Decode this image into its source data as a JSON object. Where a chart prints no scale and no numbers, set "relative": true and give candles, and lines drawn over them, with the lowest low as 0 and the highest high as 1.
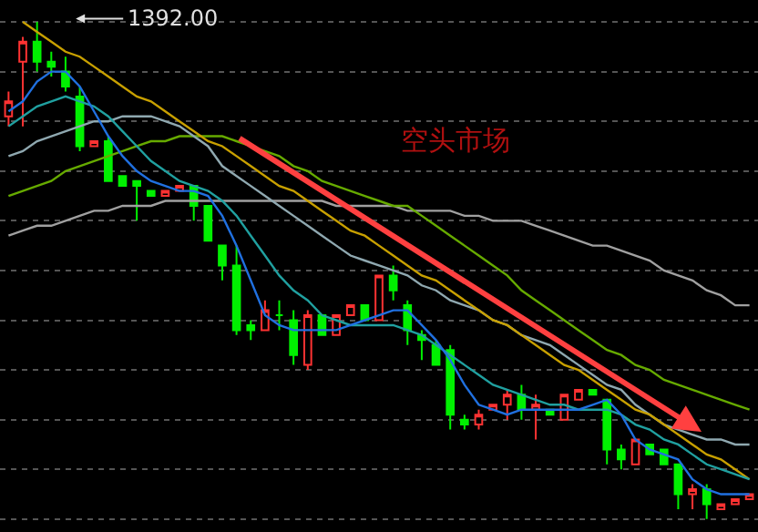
{
  "chart_data": {
    "type": "candlestick",
    "relative": true,
    "grid": "y",
    "categories": [
      null,
      null,
      null,
      null,
      null,
      null,
      null,
      null,
      null,
      null,
      null,
      null,
      null,
      null,
      null,
      null,
      null,
      null,
      null,
      null,
      null,
      null,
      null,
      null,
      null,
      null,
      null,
      null,
      null,
      null,
      null,
      null,
      null,
      null,
      null,
      null,
      null,
      null,
      null,
      null,
      null,
      null,
      null,
      null,
      null,
      null,
      null,
      null,
      null,
      null,
      null,
      null,
      null
    ],
    "colors": [
      "#ff3232",
      "#ff3232",
      "#00f000",
      "#00f000",
      "#00f000",
      "#00f000",
      "#ff3232",
      "#00f000",
      "#00f000",
      "#00f000",
      "#00f000",
      "#ff3232",
      "#ff3232",
      "#00f000",
      "#00f000",
      "#00f000",
      "#00f000",
      "#00f000",
      "#ff3232",
      "#00f000",
      "#00f000",
      "#ff3232",
      "#00f000",
      "#ff3232",
      "#ff3232",
      "#00f000",
      "#ff3232",
      "#00f000",
      "#00f000",
      "#00f000",
      "#00f000",
      "#00f000",
      "#00f000",
      "#ff3232",
      "#ff3232",
      "#ff3232",
      "#00f000",
      "#ff3232",
      "#00f000",
      "#ff3232",
      "#ff3232",
      "#00f000",
      "#00f000",
      "#00f000",
      "#ff3232",
      "#00f000",
      "#00f000",
      "#00f000",
      "#ff3232",
      "#00f000",
      "#ff3232",
      "#ff3232",
      "#ff3232"
    ],
    "ohlc": [
      [
        0.81,
        0.86,
        0.79,
        0.84
      ],
      [
        0.92,
        0.97,
        0.79,
        0.96
      ],
      [
        0.96,
        1.0,
        0.9,
        0.92
      ],
      [
        0.92,
        0.94,
        0.89,
        0.91
      ],
      [
        0.9,
        0.93,
        0.86,
        0.87
      ],
      [
        0.85,
        0.87,
        0.74,
        0.75
      ],
      [
        0.75,
        0.76,
        0.75,
        0.76
      ],
      [
        0.76,
        0.77,
        0.68,
        0.68
      ],
      [
        0.69,
        0.69,
        0.67,
        0.67
      ],
      [
        0.68,
        0.68,
        0.6,
        0.67
      ],
      [
        0.66,
        0.66,
        0.65,
        0.65
      ],
      [
        0.65,
        0.66,
        0.65,
        0.66
      ],
      [
        0.66,
        0.67,
        0.66,
        0.67
      ],
      [
        0.67,
        0.67,
        0.6,
        0.63
      ],
      [
        0.63,
        0.63,
        0.56,
        0.56
      ],
      [
        0.55,
        0.55,
        0.48,
        0.51
      ],
      [
        0.51,
        0.55,
        0.37,
        0.38
      ],
      [
        0.39,
        0.4,
        0.36,
        0.38
      ],
      [
        0.38,
        0.44,
        0.38,
        0.42
      ],
      [
        0.41,
        0.44,
        0.38,
        0.41
      ],
      [
        0.4,
        0.42,
        0.31,
        0.33
      ],
      [
        0.31,
        0.42,
        0.3,
        0.41
      ],
      [
        0.41,
        0.41,
        0.37,
        0.37
      ],
      [
        0.37,
        0.41,
        0.37,
        0.41
      ],
      [
        0.41,
        0.43,
        0.41,
        0.43
      ],
      [
        0.43,
        0.43,
        0.4,
        0.4
      ],
      [
        0.4,
        0.49,
        0.4,
        0.49
      ],
      [
        0.49,
        0.51,
        0.44,
        0.46
      ],
      [
        0.43,
        0.44,
        0.35,
        0.38
      ],
      [
        0.37,
        0.38,
        0.32,
        0.36
      ],
      [
        0.35,
        0.36,
        0.31,
        0.31
      ],
      [
        0.34,
        0.35,
        0.18,
        0.21
      ],
      [
        0.2,
        0.21,
        0.18,
        0.19
      ],
      [
        0.19,
        0.22,
        0.18,
        0.21
      ],
      [
        0.22,
        0.23,
        0.22,
        0.23
      ],
      [
        0.23,
        0.26,
        0.2,
        0.25
      ],
      [
        0.25,
        0.27,
        0.2,
        0.22
      ],
      [
        0.22,
        0.25,
        0.16,
        0.23
      ],
      [
        0.22,
        0.22,
        0.21,
        0.21
      ],
      [
        0.2,
        0.25,
        0.2,
        0.25
      ],
      [
        0.24,
        0.26,
        0.24,
        0.26
      ],
      [
        0.26,
        0.26,
        0.25,
        0.25
      ],
      [
        0.24,
        0.24,
        0.11,
        0.14
      ],
      [
        0.14,
        0.15,
        0.1,
        0.12
      ],
      [
        0.11,
        0.16,
        0.11,
        0.16
      ],
      [
        0.15,
        0.15,
        0.13,
        0.13
      ],
      [
        0.14,
        0.14,
        0.11,
        0.11
      ],
      [
        0.11,
        0.11,
        0.02,
        0.05
      ],
      [
        0.05,
        0.07,
        0.02,
        0.06
      ],
      [
        0.06,
        0.07,
        0.0,
        0.03
      ],
      [
        0.02,
        0.03,
        0.02,
        0.03
      ],
      [
        0.03,
        0.04,
        0.03,
        0.04
      ],
      [
        0.04,
        0.05,
        0.04,
        0.05
      ]
    ],
    "series": [
      {
        "type": "line",
        "color": "#a0a0a0",
        "values": [
          0.57,
          0.58,
          0.59,
          0.59,
          0.6,
          0.61,
          0.62,
          0.62,
          0.63,
          0.63,
          0.63,
          0.64,
          0.64,
          0.64,
          0.64,
          0.64,
          0.64,
          0.64,
          0.64,
          0.64,
          0.64,
          0.64,
          0.64,
          0.63,
          0.63,
          0.63,
          0.63,
          0.63,
          0.62,
          0.62,
          0.62,
          0.62,
          0.61,
          0.61,
          0.6,
          0.6,
          0.6,
          0.59,
          0.58,
          0.57,
          0.56,
          0.55,
          0.55,
          0.54,
          0.53,
          0.52,
          0.5,
          0.49,
          0.48,
          0.46,
          0.45,
          0.43,
          0.43
        ]
      },
      {
        "type": "line",
        "color": "#66aa00",
        "values": [
          0.65,
          0.66,
          0.67,
          0.68,
          0.7,
          0.71,
          0.72,
          0.73,
          0.74,
          0.75,
          0.76,
          0.76,
          0.77,
          0.77,
          0.77,
          0.77,
          0.76,
          0.75,
          0.74,
          0.73,
          0.71,
          0.7,
          0.68,
          0.67,
          0.66,
          0.65,
          0.64,
          0.63,
          0.63,
          0.61,
          0.59,
          0.57,
          0.55,
          0.53,
          0.51,
          0.49,
          0.46,
          0.44,
          0.42,
          0.4,
          0.38,
          0.36,
          0.34,
          0.33,
          0.31,
          0.3,
          0.28,
          0.27,
          0.26,
          0.25,
          0.24,
          0.23,
          0.22
        ]
      },
      {
        "type": "line",
        "color": "#8fa8b0",
        "values": [
          0.73,
          0.74,
          0.76,
          0.77,
          0.78,
          0.79,
          0.8,
          0.8,
          0.81,
          0.81,
          0.81,
          0.8,
          0.79,
          0.77,
          0.75,
          0.71,
          0.69,
          0.67,
          0.65,
          0.63,
          0.61,
          0.59,
          0.57,
          0.55,
          0.53,
          0.52,
          0.51,
          0.5,
          0.49,
          0.47,
          0.46,
          0.44,
          0.43,
          0.42,
          0.4,
          0.39,
          0.37,
          0.36,
          0.35,
          0.33,
          0.31,
          0.29,
          0.27,
          0.26,
          0.23,
          0.21,
          0.19,
          0.18,
          0.17,
          0.16,
          0.16,
          0.15,
          0.15
        ]
      },
      {
        "type": "line",
        "color": "#c8a000",
        "values": [
          null,
          1.0,
          0.98,
          0.96,
          0.94,
          0.93,
          0.91,
          0.89,
          0.87,
          0.85,
          0.84,
          0.82,
          0.8,
          0.78,
          0.76,
          0.75,
          0.73,
          0.71,
          0.69,
          0.67,
          0.66,
          0.64,
          0.62,
          0.6,
          0.58,
          0.57,
          0.55,
          0.53,
          0.51,
          0.49,
          0.48,
          0.46,
          0.44,
          0.42,
          0.4,
          0.39,
          0.37,
          0.35,
          0.33,
          0.31,
          0.3,
          0.28,
          0.26,
          0.24,
          0.22,
          0.21,
          0.19,
          0.17,
          0.15,
          0.13,
          0.12,
          0.1,
          0.08
        ]
      },
      {
        "type": "line",
        "color": "#20a0a0",
        "values": [
          0.79,
          0.81,
          0.83,
          0.84,
          0.85,
          0.84,
          0.83,
          0.81,
          0.78,
          0.75,
          0.72,
          0.7,
          0.68,
          0.67,
          0.66,
          0.64,
          0.61,
          0.57,
          0.53,
          0.49,
          0.46,
          0.44,
          0.41,
          0.4,
          0.39,
          0.39,
          0.39,
          0.39,
          0.38,
          0.37,
          0.35,
          0.33,
          0.31,
          0.29,
          0.27,
          0.26,
          0.25,
          0.24,
          0.23,
          0.23,
          0.22,
          0.22,
          0.22,
          0.21,
          0.19,
          0.18,
          0.16,
          0.15,
          0.13,
          0.11,
          0.1,
          0.09,
          0.08
        ]
      },
      {
        "type": "line",
        "color": "#2070e0",
        "values": [
          0.82,
          0.84,
          0.88,
          0.9,
          0.9,
          0.87,
          0.82,
          0.77,
          0.73,
          0.7,
          0.68,
          0.67,
          0.66,
          0.66,
          0.65,
          0.61,
          0.55,
          0.48,
          0.41,
          0.39,
          0.38,
          0.38,
          0.38,
          0.38,
          0.39,
          0.4,
          0.41,
          0.42,
          0.42,
          0.39,
          0.36,
          0.32,
          0.27,
          0.23,
          0.22,
          0.21,
          0.22,
          0.22,
          0.22,
          0.22,
          0.22,
          0.23,
          0.24,
          0.21,
          0.16,
          0.14,
          0.13,
          0.12,
          0.08,
          0.06,
          0.05,
          0.05,
          0.05
        ]
      }
    ],
    "annotations": [
      "1392.00",
      "空头市场"
    ]
  }
}
